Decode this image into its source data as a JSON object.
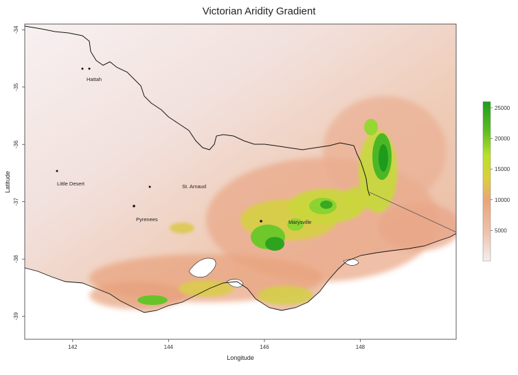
{
  "chart_data": {
    "type": "heatmap",
    "title": "Victorian Aridity Gradient",
    "xlabel": "Longitude",
    "ylabel": "Latitude",
    "xlim": [
      141,
      150
    ],
    "ylim": [
      -39.4,
      -33.9
    ],
    "x_ticks": [
      "142",
      "144",
      "146",
      "148"
    ],
    "y_ticks": [
      "-34",
      "-35",
      "-36",
      "-37",
      "-38",
      "-39"
    ],
    "colorbar": {
      "ticks": [
        "5000",
        "10000",
        "15000",
        "20000",
        "25000"
      ],
      "range": [
        0,
        26000
      ],
      "colors": [
        "#f5eeee",
        "#eec2ac",
        "#e8a57a",
        "#dccf3a",
        "#b9e22a",
        "#5cbc22",
        "#1d9d1c"
      ]
    },
    "places": [
      {
        "name": "Hattah"
      },
      {
        "name": "Little Desert"
      },
      {
        "name": "St. Arnaud"
      },
      {
        "name": "Pyrenees"
      },
      {
        "name": "Marysville"
      }
    ]
  }
}
